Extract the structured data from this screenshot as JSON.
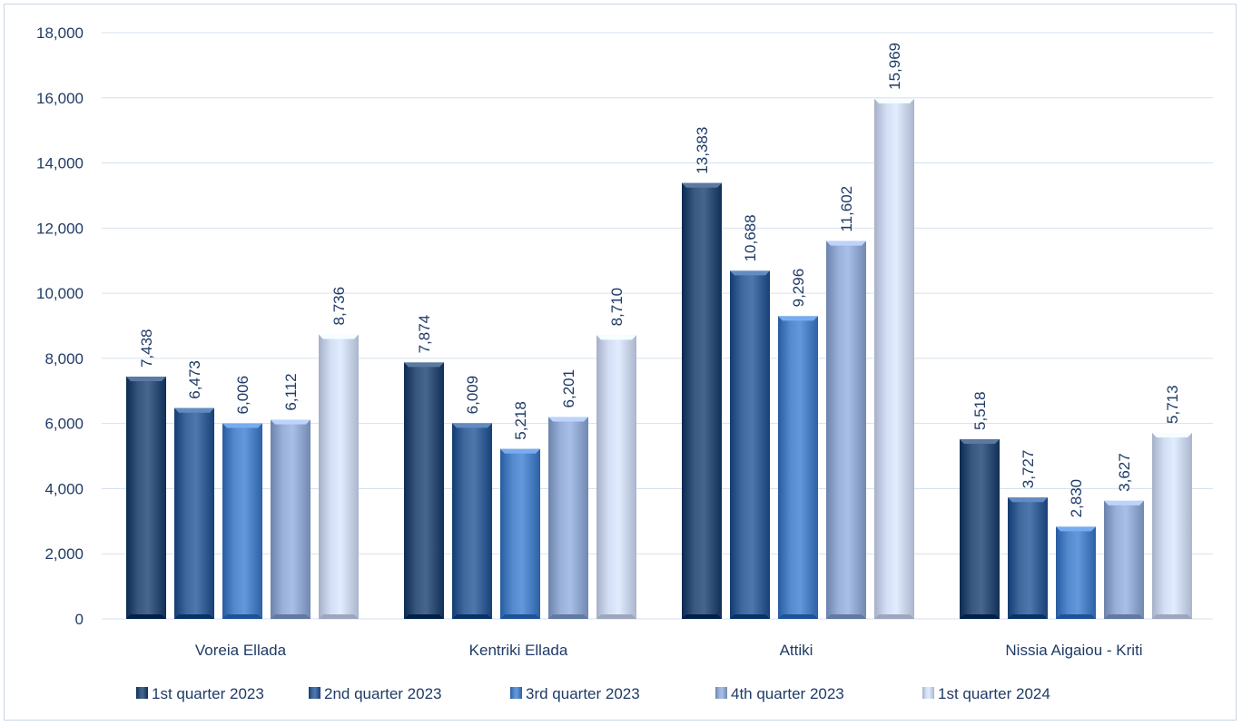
{
  "chart_data": {
    "type": "bar",
    "categories": [
      "Voreia Ellada",
      "Kentriki Ellada",
      "Attiki",
      "Nissia Aigaiou - Kriti"
    ],
    "series": [
      {
        "name": "1st quarter 2023",
        "values": [
          7438,
          7874,
          13383,
          5518
        ],
        "color": "#2e4d75"
      },
      {
        "name": "2nd quarter 2023",
        "values": [
          6473,
          6009,
          10688,
          3727
        ],
        "color": "#355f94"
      },
      {
        "name": "3rd quarter 2023",
        "values": [
          6006,
          5218,
          9296,
          2830
        ],
        "color": "#4a7fc4"
      },
      {
        "name": "4th quarter 2023",
        "values": [
          6112,
          6201,
          11602,
          3627
        ],
        "color": "#8fa6cf"
      },
      {
        "name": "1st quarter 2024",
        "values": [
          8736,
          8710,
          15969,
          5713
        ],
        "color": "#c9d3ea"
      }
    ],
    "data_labels": [
      [
        "7,438",
        "7,874",
        "13,383",
        "5,518"
      ],
      [
        "6,473",
        "6,009",
        "10,688",
        "3,727"
      ],
      [
        "6,006",
        "5,218",
        "9,296",
        "2,830"
      ],
      [
        "6,112",
        "6,201",
        "11,602",
        "3,627"
      ],
      [
        "8,736",
        "8,710",
        "15,969",
        "5,713"
      ]
    ],
    "y_ticks": [
      "0",
      "2,000",
      "4,000",
      "6,000",
      "8,000",
      "10,000",
      "12,000",
      "14,000",
      "16,000",
      "18,000"
    ],
    "ylim": [
      0,
      18000
    ],
    "title": "",
    "xlabel": "",
    "ylabel": "",
    "grid": true,
    "legend_position": "bottom"
  }
}
